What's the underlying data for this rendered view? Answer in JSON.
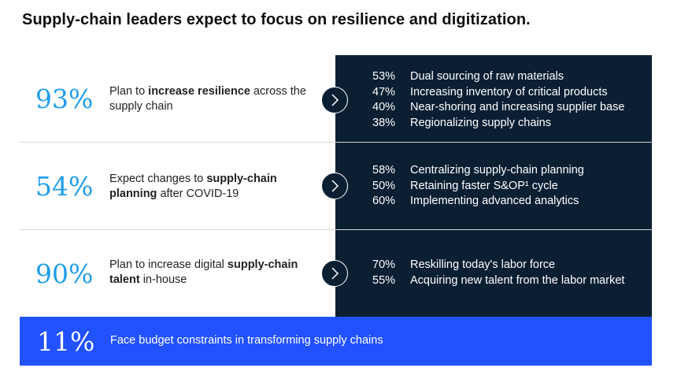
{
  "title": "Supply-chain leaders expect to focus on resilience and digitization.",
  "chart_data": {
    "type": "table",
    "title": "Supply-chain leaders expect to focus on resilience and digitization.",
    "rows": [
      {
        "value": "93%",
        "desc_before": "Plan to ",
        "desc_bold": "increase resilience",
        "desc_after": " across the supply chain",
        "items": [
          {
            "value": "53%",
            "label": "Dual sourcing of raw materials"
          },
          {
            "value": "47%",
            "label": "Increasing inventory of critical products"
          },
          {
            "value": "40%",
            "label": "Near-shoring and increasing supplier base"
          },
          {
            "value": "38%",
            "label": "Regionalizing supply chains"
          }
        ]
      },
      {
        "value": "54%",
        "desc_before": "Expect changes to ",
        "desc_bold": "supply-chain planning",
        "desc_after": " after COVID-19",
        "items": [
          {
            "value": "58%",
            "label": "Centralizing supply-chain planning"
          },
          {
            "value": "50%",
            "label": "Retaining faster S&OP¹ cycle"
          },
          {
            "value": "60%",
            "label": "Implementing advanced analytics"
          }
        ]
      },
      {
        "value": "90%",
        "desc_before": "Plan to increase digital ",
        "desc_bold": "supply-chain talent",
        "desc_after": " in-house",
        "items": [
          {
            "value": "70%",
            "label": "Reskilling today's labor force"
          },
          {
            "value": "55%",
            "label": "Acquiring new talent from the labor market"
          }
        ]
      }
    ],
    "footer": {
      "value": "11%",
      "desc": "Face budget constraints in transforming supply chains"
    }
  },
  "colors": {
    "accent_blue": "#1f9dee",
    "panel_navy": "#0b1f33",
    "footer_blue": "#2251ff"
  },
  "icons": {
    "arrow": "chevron-right-icon"
  }
}
